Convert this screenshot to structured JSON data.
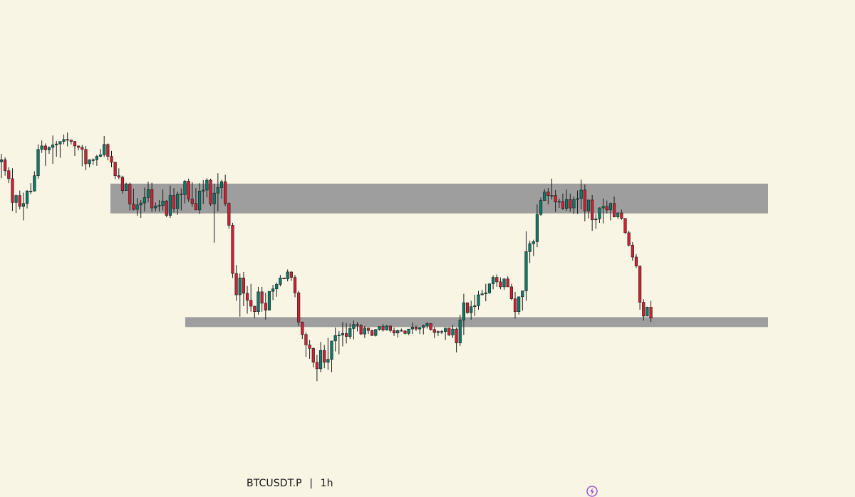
{
  "chart_data": {
    "type": "candlestick",
    "symbol": "BTCUSDT.P",
    "separator": "|",
    "timeframe": "1h",
    "price_range": [
      0,
      100
    ],
    "zones": [
      {
        "low": 57.0,
        "high": 63.0
      },
      {
        "low": 34.1,
        "high": 36.1
      }
    ],
    "colors": {
      "background": "#f8f5e4",
      "up": "#0b7a6a",
      "down": "#d11f34",
      "wick": "#1a1a1a",
      "zone": "#9e9e9e",
      "icon": "#8b3fd1"
    },
    "candles": [
      [
        67.4,
        69.0,
        64.1,
        67.8
      ],
      [
        67.8,
        68.3,
        64.6,
        65.6
      ],
      [
        65.6,
        66.3,
        63.1,
        64.0
      ],
      [
        64.0,
        66.1,
        57.5,
        59.2
      ],
      [
        59.2,
        60.8,
        57.1,
        60.6
      ],
      [
        60.6,
        61.6,
        57.8,
        58.4
      ],
      [
        58.4,
        61.2,
        55.6,
        59.0
      ],
      [
        59.0,
        61.7,
        58.0,
        61.5
      ],
      [
        61.5,
        63.1,
        60.9,
        61.5
      ],
      [
        61.5,
        65.5,
        61.4,
        64.6
      ],
      [
        64.6,
        70.9,
        64.0,
        69.9
      ],
      [
        69.9,
        71.7,
        69.2,
        70.6
      ],
      [
        70.6,
        71.1,
        66.6,
        69.8
      ],
      [
        69.8,
        70.5,
        69.0,
        70.3
      ],
      [
        70.3,
        72.7,
        67.0,
        70.8
      ],
      [
        70.8,
        71.6,
        68.4,
        71.0
      ],
      [
        71.0,
        71.2,
        68.2,
        71.5
      ],
      [
        71.5,
        72.9,
        70.9,
        71.9
      ],
      [
        71.9,
        73.3,
        70.5,
        71.8
      ],
      [
        71.8,
        71.8,
        70.9,
        71.5
      ],
      [
        71.5,
        71.6,
        68.6,
        70.6
      ],
      [
        70.6,
        70.5,
        69.7,
        70.3
      ],
      [
        70.3,
        70.8,
        66.5,
        69.9
      ],
      [
        69.9,
        70.6,
        65.7,
        67.0
      ],
      [
        67.0,
        67.9,
        66.3,
        67.8
      ],
      [
        67.8,
        68.1,
        66.8,
        67.8
      ],
      [
        67.8,
        68.8,
        66.6,
        68.5
      ],
      [
        68.5,
        70.0,
        68.3,
        68.8
      ],
      [
        68.8,
        72.6,
        68.4,
        70.9
      ],
      [
        70.9,
        71.1,
        67.7,
        68.5
      ],
      [
        68.5,
        69.6,
        66.3,
        67.3
      ],
      [
        67.3,
        67.4,
        63.9,
        64.6
      ],
      [
        64.6,
        66.1,
        63.9,
        64.3
      ],
      [
        64.3,
        64.6,
        61.0,
        61.6
      ],
      [
        61.6,
        63.2,
        61.6,
        62.9
      ],
      [
        62.9,
        63.2,
        57.6,
        58.9
      ],
      [
        58.9,
        62.0,
        57.6,
        57.8
      ],
      [
        57.8,
        60.1,
        56.5,
        58.7
      ],
      [
        58.7,
        59.7,
        56.1,
        59.1
      ],
      [
        59.1,
        62.2,
        57.4,
        60.2
      ],
      [
        60.2,
        63.4,
        59.2,
        61.8
      ],
      [
        61.8,
        63.2,
        57.3,
        58.1
      ],
      [
        58.1,
        59.2,
        57.4,
        58.5
      ],
      [
        58.5,
        59.7,
        57.4,
        58.6
      ],
      [
        58.6,
        61.8,
        57.6,
        59.5
      ],
      [
        59.5,
        59.7,
        56.2,
        56.6
      ],
      [
        56.6,
        62.6,
        56.1,
        60.6
      ],
      [
        60.6,
        62.1,
        57.2,
        58.0
      ],
      [
        58.0,
        61.4,
        56.7,
        60.9
      ],
      [
        60.9,
        62.0,
        57.6,
        60.8
      ],
      [
        60.8,
        63.7,
        59.0,
        63.5
      ],
      [
        63.5,
        64.0,
        59.3,
        59.9
      ],
      [
        59.9,
        63.3,
        58.3,
        59.0
      ],
      [
        59.0,
        62.1,
        57.9,
        57.7
      ],
      [
        57.7,
        63.1,
        56.9,
        61.5
      ],
      [
        61.5,
        63.7,
        58.9,
        61.7
      ],
      [
        61.7,
        64.1,
        60.2,
        63.7
      ],
      [
        63.7,
        64.0,
        58.5,
        58.9
      ],
      [
        58.9,
        63.0,
        51.1,
        61.1
      ],
      [
        61.1,
        65.1,
        57.4,
        62.2
      ],
      [
        62.2,
        63.8,
        60.0,
        63.4
      ],
      [
        63.4,
        64.8,
        58.5,
        59.0
      ],
      [
        59.0,
        59.2,
        53.9,
        54.6
      ],
      [
        54.6,
        55.1,
        44.0,
        44.9
      ],
      [
        44.9,
        46.6,
        39.4,
        40.6
      ],
      [
        40.6,
        44.9,
        36.2,
        44.0
      ],
      [
        44.0,
        45.2,
        38.3,
        40.9
      ],
      [
        40.9,
        42.4,
        36.8,
        39.5
      ],
      [
        39.5,
        42.8,
        37.2,
        38.3
      ],
      [
        38.3,
        38.4,
        35.9,
        37.2
      ],
      [
        37.2,
        42.2,
        36.6,
        41.2
      ],
      [
        41.2,
        42.2,
        37.2,
        38.9
      ],
      [
        38.9,
        41.0,
        35.6,
        37.5
      ],
      [
        37.5,
        41.3,
        37.7,
        41.3
      ],
      [
        41.3,
        42.6,
        39.5,
        41.8
      ],
      [
        41.8,
        43.1,
        40.2,
        42.7
      ],
      [
        42.7,
        44.6,
        42.3,
        44.0
      ],
      [
        44.0,
        44.0,
        43.8,
        43.8
      ],
      [
        43.8,
        45.7,
        43.3,
        45.2
      ],
      [
        45.2,
        45.3,
        43.4,
        44.1
      ],
      [
        44.1,
        44.6,
        40.1,
        41.0
      ],
      [
        41.0,
        41.4,
        34.3,
        35.1
      ],
      [
        35.1,
        35.2,
        31.7,
        32.6
      ],
      [
        32.6,
        33.0,
        28.1,
        30.5
      ],
      [
        30.5,
        31.5,
        27.7,
        29.8
      ],
      [
        29.8,
        30.0,
        26.0,
        27.0
      ],
      [
        27.0,
        28.5,
        23.2,
        25.7
      ],
      [
        25.7,
        31.1,
        25.0,
        29.4
      ],
      [
        29.4,
        30.5,
        25.8,
        27.0
      ],
      [
        27.0,
        31.9,
        25.5,
        27.6
      ],
      [
        27.6,
        31.1,
        25.0,
        31.3
      ],
      [
        31.3,
        34.0,
        29.2,
        32.4
      ],
      [
        32.4,
        33.3,
        28.6,
        32.5
      ],
      [
        32.5,
        35.1,
        30.2,
        32.8
      ],
      [
        32.8,
        34.9,
        30.8,
        32.2
      ],
      [
        32.2,
        34.8,
        31.7,
        33.8
      ],
      [
        33.8,
        35.4,
        31.6,
        34.6
      ],
      [
        34.6,
        35.1,
        33.2,
        34.4
      ],
      [
        34.4,
        34.7,
        32.5,
        32.7
      ],
      [
        32.7,
        34.3,
        31.9,
        33.9
      ],
      [
        33.9,
        34.0,
        32.7,
        33.4
      ],
      [
        33.4,
        33.6,
        32.3,
        32.4
      ],
      [
        32.4,
        33.7,
        32.2,
        33.6
      ],
      [
        33.6,
        34.2,
        33.4,
        34.2
      ],
      [
        34.2,
        34.7,
        33.2,
        33.5
      ],
      [
        33.5,
        34.5,
        33.4,
        34.3
      ],
      [
        34.3,
        34.4,
        33.0,
        33.4
      ],
      [
        33.4,
        34.0,
        32.3,
        32.9
      ],
      [
        32.9,
        33.6,
        32.0,
        33.4
      ],
      [
        33.4,
        33.8,
        33.2,
        33.3
      ],
      [
        33.3,
        33.5,
        32.6,
        32.8
      ],
      [
        32.8,
        33.7,
        32.5,
        33.7
      ],
      [
        33.7,
        35.0,
        32.7,
        34.1
      ],
      [
        34.1,
        34.4,
        33.3,
        33.7
      ],
      [
        33.7,
        34.1,
        32.7,
        34.0
      ],
      [
        34.0,
        34.6,
        32.6,
        34.4
      ],
      [
        34.4,
        35.1,
        33.8,
        34.8
      ],
      [
        34.8,
        34.9,
        33.4,
        33.6
      ],
      [
        33.6,
        34.1,
        31.9,
        33.0
      ],
      [
        33.0,
        33.4,
        32.3,
        33.2
      ],
      [
        33.2,
        33.5,
        32.7,
        33.2
      ],
      [
        33.2,
        33.9,
        31.5,
        33.9
      ],
      [
        33.9,
        34.0,
        32.3,
        32.5
      ],
      [
        32.5,
        34.5,
        31.9,
        33.7
      ],
      [
        33.7,
        34.0,
        29.0,
        30.9
      ],
      [
        30.9,
        36.6,
        30.3,
        35.5
      ],
      [
        35.5,
        40.8,
        32.5,
        39.0
      ],
      [
        39.0,
        39.0,
        36.8,
        37.0
      ],
      [
        37.0,
        39.4,
        35.6,
        38.2
      ],
      [
        38.2,
        40.6,
        36.3,
        38.4
      ],
      [
        38.4,
        41.4,
        37.6,
        40.6
      ],
      [
        40.6,
        41.6,
        40.5,
        40.8
      ],
      [
        40.8,
        42.8,
        39.3,
        41.0
      ],
      [
        41.0,
        42.9,
        40.8,
        42.8
      ],
      [
        42.8,
        44.5,
        41.7,
        44.1
      ],
      [
        44.1,
        44.7,
        42.2,
        43.2
      ],
      [
        43.2,
        44.1,
        41.7,
        42.2
      ],
      [
        42.2,
        43.9,
        41.6,
        43.8
      ],
      [
        43.8,
        44.3,
        42.3,
        42.2
      ],
      [
        42.2,
        42.8,
        39.5,
        39.8
      ],
      [
        39.8,
        41.2,
        35.8,
        37.2
      ],
      [
        37.2,
        40.2,
        36.6,
        40.2
      ],
      [
        40.2,
        41.4,
        37.4,
        41.4
      ],
      [
        41.4,
        53.4,
        39.4,
        49.3
      ],
      [
        49.3,
        51.5,
        47.0,
        50.9
      ],
      [
        50.9,
        51.7,
        48.4,
        51.3
      ],
      [
        51.3,
        58.8,
        50.2,
        56.8
      ],
      [
        56.8,
        60.2,
        56.5,
        59.6
      ],
      [
        59.6,
        61.9,
        59.7,
        61.3
      ],
      [
        61.3,
        62.1,
        58.8,
        60.6
      ],
      [
        60.6,
        64.0,
        59.8,
        60.6
      ],
      [
        60.6,
        61.7,
        57.3,
        59.3
      ],
      [
        59.3,
        60.0,
        58.1,
        59.4
      ],
      [
        59.4,
        61.0,
        57.7,
        58.0
      ],
      [
        58.0,
        61.8,
        57.5,
        59.8
      ],
      [
        59.8,
        61.0,
        57.3,
        58.1
      ],
      [
        58.1,
        60.4,
        56.9,
        59.8
      ],
      [
        59.8,
        61.6,
        56.9,
        60.0
      ],
      [
        60.0,
        63.8,
        57.8,
        61.7
      ],
      [
        61.7,
        62.8,
        55.4,
        57.5
      ],
      [
        57.5,
        59.3,
        56.0,
        59.7
      ],
      [
        59.7,
        60.7,
        53.5,
        55.7
      ],
      [
        55.7,
        56.9,
        53.9,
        55.9
      ],
      [
        55.9,
        58.2,
        55.1,
        58.1
      ],
      [
        58.1,
        60.0,
        55.0,
        58.4
      ],
      [
        58.4,
        59.6,
        57.0,
        57.7
      ],
      [
        57.7,
        59.2,
        55.6,
        59.0
      ],
      [
        59.0,
        60.4,
        56.2,
        56.3
      ],
      [
        56.3,
        57.2,
        55.9,
        57.1
      ],
      [
        57.1,
        57.8,
        55.7,
        56.0
      ],
      [
        56.0,
        56.0,
        52.9,
        53.1
      ],
      [
        53.1,
        53.5,
        50.3,
        50.6
      ],
      [
        50.6,
        51.2,
        47.5,
        48.2
      ],
      [
        48.2,
        48.8,
        46.0,
        46.4
      ],
      [
        46.4,
        46.1,
        37.6,
        39.1
      ],
      [
        39.1,
        39.7,
        35.4,
        36.3
      ],
      [
        36.3,
        38.2,
        36.4,
        38.1
      ],
      [
        38.1,
        39.4,
        35.1,
        35.9
      ]
    ]
  }
}
